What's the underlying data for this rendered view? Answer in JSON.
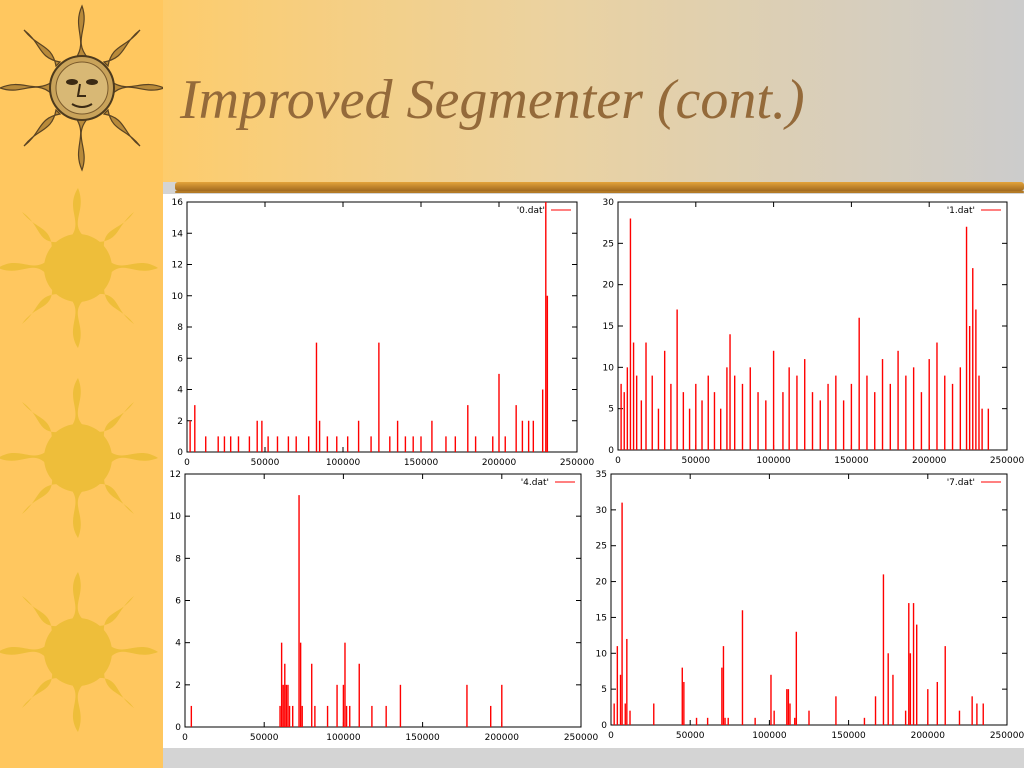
{
  "slide": {
    "title": "Improved Segmenter (cont.)"
  },
  "colors": {
    "left_strip": "#ffc75f",
    "sun": "#eebe3a",
    "title_text": "#946a3a",
    "series": "#ff0000"
  },
  "decorations": {
    "icons": [
      "sun-face-icon",
      "sun-icon",
      "sun-icon",
      "sun-icon"
    ]
  },
  "chart_data": [
    {
      "type": "bar",
      "legend": "'0.dat'",
      "legend_position": "top-right",
      "xlim": [
        0,
        250000
      ],
      "ylim": [
        0,
        16
      ],
      "xticks": [
        0,
        50000,
        100000,
        150000,
        200000,
        250000
      ],
      "yticks": [
        0,
        2,
        4,
        6,
        8,
        10,
        12,
        14,
        16
      ],
      "x": [
        2000,
        5000,
        12000,
        20000,
        24000,
        28000,
        33000,
        40000,
        45000,
        48000,
        52000,
        58000,
        65000,
        70000,
        78000,
        83000,
        85000,
        90000,
        96000,
        103000,
        110000,
        118000,
        123000,
        130000,
        135000,
        140000,
        145000,
        150000,
        157000,
        166000,
        172000,
        180000,
        185000,
        196000,
        200000,
        204000,
        211000,
        215000,
        219000,
        222000,
        228000,
        230000,
        231000
      ],
      "y": [
        2,
        3,
        1,
        1,
        1,
        1,
        1,
        1,
        2,
        2,
        1,
        1,
        1,
        1,
        1,
        7,
        2,
        1,
        1,
        1,
        2,
        1,
        7,
        1,
        2,
        1,
        1,
        1,
        2,
        1,
        1,
        3,
        1,
        1,
        5,
        1,
        3,
        2,
        2,
        2,
        4,
        16,
        10
      ]
    },
    {
      "type": "bar",
      "legend": "'1.dat'",
      "legend_position": "top-right",
      "xlim": [
        0,
        250000
      ],
      "ylim": [
        0,
        30
      ],
      "xticks": [
        0,
        50000,
        100000,
        150000,
        200000,
        250000
      ],
      "yticks": [
        0,
        5,
        10,
        15,
        20,
        25,
        30
      ],
      "x": [
        2000,
        4000,
        6000,
        8000,
        10000,
        12000,
        15000,
        18000,
        22000,
        26000,
        30000,
        34000,
        38000,
        42000,
        46000,
        50000,
        54000,
        58000,
        62000,
        66000,
        70000,
        72000,
        75000,
        80000,
        85000,
        90000,
        95000,
        100000,
        106000,
        110000,
        115000,
        120000,
        125000,
        130000,
        135000,
        140000,
        145000,
        150000,
        155000,
        160000,
        165000,
        170000,
        175000,
        180000,
        185000,
        190000,
        195000,
        200000,
        205000,
        210000,
        215000,
        220000,
        224000,
        226000,
        228000,
        230000,
        232000,
        234000,
        238000
      ],
      "y": [
        8,
        7,
        10,
        28,
        13,
        9,
        6,
        13,
        9,
        5,
        12,
        8,
        17,
        7,
        5,
        8,
        6,
        9,
        7,
        5,
        10,
        14,
        9,
        8,
        10,
        7,
        6,
        12,
        7,
        10,
        9,
        11,
        7,
        6,
        8,
        9,
        6,
        8,
        16,
        9,
        7,
        11,
        8,
        12,
        9,
        10,
        7,
        11,
        13,
        9,
        8,
        10,
        27,
        15,
        22,
        17,
        9,
        5,
        5
      ]
    },
    {
      "type": "bar",
      "legend": "'4.dat'",
      "legend_position": "top-right",
      "xlim": [
        0,
        250000
      ],
      "ylim": [
        0,
        12
      ],
      "xticks": [
        0,
        50000,
        100000,
        150000,
        200000,
        250000
      ],
      "yticks": [
        0,
        2,
        4,
        6,
        8,
        10,
        12
      ],
      "x": [
        4000,
        60000,
        61000,
        62000,
        63000,
        64000,
        65000,
        66000,
        68000,
        72000,
        73000,
        74000,
        80000,
        82000,
        90000,
        96000,
        100000,
        101000,
        102000,
        104000,
        110000,
        118000,
        127000,
        136000,
        178000,
        193000,
        200000
      ],
      "y": [
        1,
        1,
        4,
        2,
        3,
        2,
        2,
        1,
        1,
        11,
        4,
        1,
        3,
        1,
        1,
        2,
        2,
        4,
        1,
        1,
        3,
        1,
        1,
        2,
        2,
        1,
        2
      ]
    },
    {
      "type": "bar",
      "legend": "'7.dat'",
      "legend_position": "top-right",
      "xlim": [
        0,
        250000
      ],
      "ylim": [
        0,
        35
      ],
      "xticks": [
        0,
        50000,
        100000,
        150000,
        200000,
        250000
      ],
      "yticks": [
        0,
        5,
        10,
        15,
        20,
        25,
        30,
        35
      ],
      "x": [
        2000,
        4000,
        6000,
        7000,
        9000,
        10000,
        12000,
        27000,
        45000,
        46000,
        54000,
        61000,
        70000,
        71000,
        72000,
        74000,
        83000,
        91000,
        101000,
        103000,
        111000,
        112000,
        113000,
        116000,
        117000,
        125000,
        142000,
        160000,
        167000,
        172000,
        175000,
        178000,
        186000,
        188000,
        189000,
        191000,
        193000,
        200000,
        206000,
        211000,
        220000,
        228000,
        231000,
        235000
      ],
      "y": [
        3,
        11,
        7,
        31,
        3,
        12,
        2,
        3,
        8,
        6,
        1,
        1,
        8,
        11,
        1,
        1,
        16,
        1,
        7,
        2,
        5,
        5,
        3,
        1,
        13,
        2,
        4,
        1,
        4,
        21,
        10,
        7,
        2,
        17,
        10,
        17,
        14,
        5,
        6,
        11,
        2,
        4,
        3,
        3
      ]
    }
  ]
}
